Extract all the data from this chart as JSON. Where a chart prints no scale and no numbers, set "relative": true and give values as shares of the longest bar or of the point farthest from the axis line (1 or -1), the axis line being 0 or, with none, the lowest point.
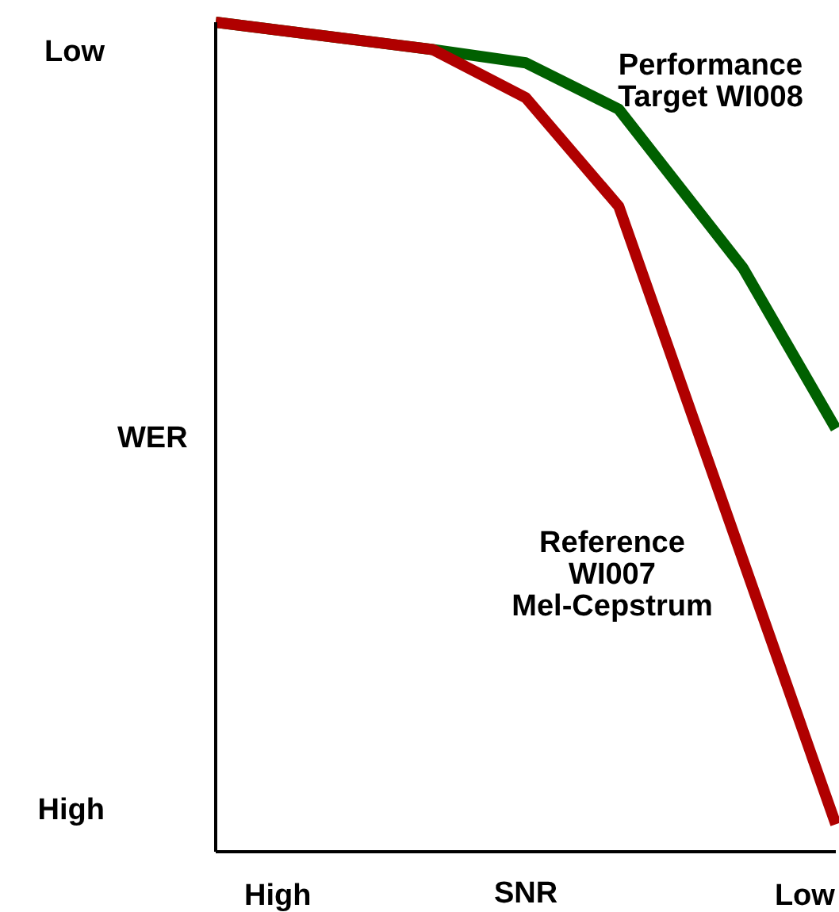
{
  "chart_data": {
    "type": "line",
    "relative": true,
    "xlabel": "SNR",
    "ylabel": "WER",
    "categories": [
      null,
      null,
      "High",
      null,
      null,
      null,
      null,
      null,
      null,
      null,
      null,
      null,
      null,
      null,
      null,
      null,
      null,
      null,
      null,
      "Low",
      null
    ],
    "annotations": [
      "Low",
      "High"
    ],
    "series": [
      {
        "name": "Performance\nTarget WI008",
        "color": "#006000",
        "values": [
          1,
          null,
          null,
          null,
          null,
          null,
          null,
          0.967,
          null,
          null,
          0.951,
          null,
          null,
          0.895,
          null,
          null,
          null,
          0.704,
          null,
          null,
          0.51
        ]
      },
      {
        "name": "Reference\nWI007\nMel-Cepstrum",
        "color": "#b00000",
        "values": [
          1,
          null,
          null,
          null,
          null,
          null,
          null,
          0.967,
          null,
          null,
          0.909,
          null,
          null,
          0.778,
          null,
          null,
          null,
          null,
          null,
          null,
          0.033
        ]
      }
    ],
    "legend": false,
    "grid": false,
    "marker": "none",
    "line_style": "solid"
  }
}
